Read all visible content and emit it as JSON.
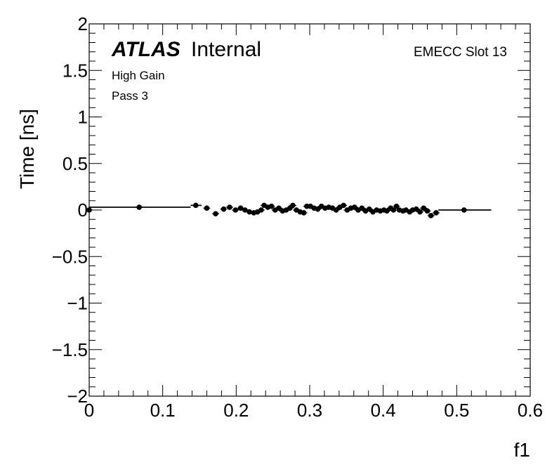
{
  "labels": {
    "atlas": "ATLAS",
    "internal": "Internal",
    "gain": "High Gain",
    "pass": "Pass 3",
    "slot": "EMECC Slot 13"
  },
  "chart_data": {
    "type": "scatter",
    "xlabel": "f1",
    "ylabel": "Time [ns]",
    "xlim": [
      0,
      0.6
    ],
    "ylim": [
      -2,
      2
    ],
    "xticks": [
      "0",
      "0.1",
      "0.2",
      "0.3",
      "0.4",
      "0.5",
      "0.6"
    ],
    "yticks": [
      "2",
      "1.5",
      "1",
      "0.5",
      "0",
      "−0.5",
      "−1",
      "−1.5",
      "−2"
    ],
    "xtick_values": [
      0,
      0.1,
      0.2,
      0.3,
      0.4,
      0.5,
      0.6
    ],
    "ytick_values": [
      2,
      1.5,
      1,
      0.5,
      0,
      -0.5,
      -1,
      -1.5,
      -2
    ],
    "grid": false,
    "marker_color": "#000000",
    "points": [
      {
        "x": 0.0,
        "y": 0.0
      },
      {
        "x": 0.068,
        "y": 0.03
      },
      {
        "x": 0.145,
        "y": 0.05
      },
      {
        "x": 0.16,
        "y": 0.02
      },
      {
        "x": 0.172,
        "y": -0.04
      },
      {
        "x": 0.183,
        "y": 0.01
      },
      {
        "x": 0.191,
        "y": 0.03
      },
      {
        "x": 0.199,
        "y": 0.0
      },
      {
        "x": 0.206,
        "y": 0.02
      },
      {
        "x": 0.212,
        "y": 0.0
      },
      {
        "x": 0.218,
        "y": -0.02
      },
      {
        "x": 0.224,
        "y": -0.03
      },
      {
        "x": 0.229,
        "y": -0.02
      },
      {
        "x": 0.234,
        "y": 0.0
      },
      {
        "x": 0.238,
        "y": 0.05
      },
      {
        "x": 0.243,
        "y": 0.03
      },
      {
        "x": 0.248,
        "y": 0.04
      },
      {
        "x": 0.253,
        "y": 0.0
      },
      {
        "x": 0.258,
        "y": 0.02
      },
      {
        "x": 0.263,
        "y": -0.01
      },
      {
        "x": 0.268,
        "y": 0.0
      },
      {
        "x": 0.273,
        "y": 0.02
      },
      {
        "x": 0.277,
        "y": 0.05
      },
      {
        "x": 0.282,
        "y": 0.0
      },
      {
        "x": 0.287,
        "y": -0.02
      },
      {
        "x": 0.292,
        "y": -0.03
      },
      {
        "x": 0.296,
        "y": 0.04
      },
      {
        "x": 0.301,
        "y": 0.04
      },
      {
        "x": 0.306,
        "y": 0.02
      },
      {
        "x": 0.311,
        "y": 0.01
      },
      {
        "x": 0.316,
        "y": 0.04
      },
      {
        "x": 0.321,
        "y": 0.02
      },
      {
        "x": 0.326,
        "y": 0.03
      },
      {
        "x": 0.331,
        "y": 0.02
      },
      {
        "x": 0.336,
        "y": 0.0
      },
      {
        "x": 0.341,
        "y": 0.03
      },
      {
        "x": 0.346,
        "y": 0.05
      },
      {
        "x": 0.351,
        "y": 0.0
      },
      {
        "x": 0.356,
        "y": 0.02
      },
      {
        "x": 0.361,
        "y": 0.03
      },
      {
        "x": 0.366,
        "y": 0.0
      },
      {
        "x": 0.371,
        "y": 0.02
      },
      {
        "x": 0.376,
        "y": -0.01
      },
      {
        "x": 0.381,
        "y": 0.01
      },
      {
        "x": 0.386,
        "y": -0.02
      },
      {
        "x": 0.391,
        "y": 0.0
      },
      {
        "x": 0.396,
        "y": -0.01
      },
      {
        "x": 0.401,
        "y": 0.0
      },
      {
        "x": 0.405,
        "y": -0.01
      },
      {
        "x": 0.41,
        "y": 0.02
      },
      {
        "x": 0.414,
        "y": 0.0
      },
      {
        "x": 0.418,
        "y": 0.04
      },
      {
        "x": 0.422,
        "y": 0.0
      },
      {
        "x": 0.427,
        "y": -0.01
      },
      {
        "x": 0.431,
        "y": 0.0
      },
      {
        "x": 0.436,
        "y": -0.02
      },
      {
        "x": 0.44,
        "y": 0.0
      },
      {
        "x": 0.445,
        "y": 0.01
      },
      {
        "x": 0.45,
        "y": -0.02
      },
      {
        "x": 0.455,
        "y": 0.02
      },
      {
        "x": 0.46,
        "y": -0.01
      },
      {
        "x": 0.465,
        "y": -0.06
      },
      {
        "x": 0.472,
        "y": -0.03
      },
      {
        "x": 0.51,
        "y": 0.0
      }
    ],
    "step_line": [
      {
        "x0": 0.0,
        "x1": 0.138,
        "y": 0.03
      },
      {
        "x0": 0.138,
        "x1": 0.153,
        "y": 0.05
      },
      {
        "x0": 0.475,
        "x1": 0.547,
        "y": 0.0
      }
    ]
  }
}
